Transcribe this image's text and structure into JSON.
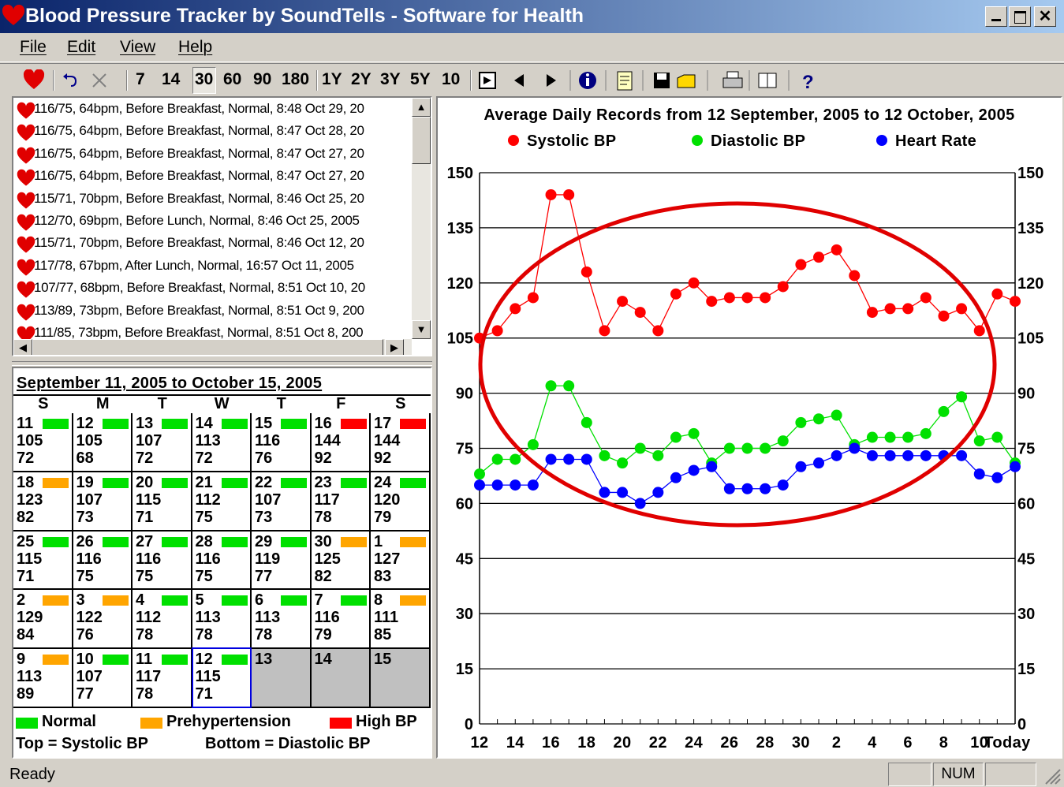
{
  "window": {
    "title": "Blood Pressure Tracker by SoundTells - Software for Health",
    "menu": [
      "File",
      "Edit",
      "View",
      "Help"
    ],
    "toolbar": [
      "7",
      "14",
      "30",
      "60",
      "90",
      "180",
      "1Y",
      "2Y",
      "3Y",
      "5Y",
      "10"
    ]
  },
  "records": [
    "116/75, 64bpm, Before Breakfast, Normal, 8:48 Oct 29, 20",
    "116/75, 64bpm, Before Breakfast, Normal, 8:47 Oct 28, 20",
    "116/75, 64bpm, Before Breakfast, Normal, 8:47 Oct 27, 20",
    "116/75, 64bpm, Before Breakfast, Normal, 8:47 Oct 27, 20",
    "115/71, 70bpm, Before Breakfast, Normal, 8:46 Oct 25, 20",
    "112/70, 69bpm, Before Lunch, Normal, 8:46 Oct 25, 2005",
    "115/71, 70bpm, Before Breakfast, Normal, 8:46 Oct 12, 20",
    "117/78, 67bpm, After Lunch, Normal, 16:57 Oct 11, 2005",
    "107/77, 68bpm, Before Breakfast, Normal, 8:51 Oct 10, 20",
    "113/89, 73bpm, Before Breakfast, Normal, 8:51 Oct 9, 200",
    "111/85, 73bpm, Before Breakfast, Normal, 8:51 Oct 8, 200"
  ],
  "calendar": {
    "title": "September 11, 2005 to October 15, 2005",
    "weekdays": [
      "S",
      "M",
      "T",
      "W",
      "T",
      "F",
      "S"
    ],
    "cells": [
      {
        "day": 11,
        "color": "#00e000",
        "systolic": 105,
        "diastolic": 72
      },
      {
        "day": 12,
        "color": "#00e000",
        "systolic": 105,
        "diastolic": 68
      },
      {
        "day": 13,
        "color": "#00e000",
        "systolic": 107,
        "diastolic": 72
      },
      {
        "day": 14,
        "color": "#00e000",
        "systolic": 113,
        "diastolic": 72
      },
      {
        "day": 15,
        "color": "#00e000",
        "systolic": 116,
        "diastolic": 76
      },
      {
        "day": 16,
        "color": "#ff0000",
        "systolic": 144,
        "diastolic": 92
      },
      {
        "day": 17,
        "color": "#ff0000",
        "systolic": 144,
        "diastolic": 92
      },
      {
        "day": 18,
        "color": "#ffa500",
        "systolic": 123,
        "diastolic": 82
      },
      {
        "day": 19,
        "color": "#00e000",
        "systolic": 107,
        "diastolic": 73
      },
      {
        "day": 20,
        "color": "#00e000",
        "systolic": 115,
        "diastolic": 71
      },
      {
        "day": 21,
        "color": "#00e000",
        "systolic": 112,
        "diastolic": 75
      },
      {
        "day": 22,
        "color": "#00e000",
        "systolic": 107,
        "diastolic": 73
      },
      {
        "day": 23,
        "color": "#00e000",
        "systolic": 117,
        "diastolic": 78
      },
      {
        "day": 24,
        "color": "#00e000",
        "systolic": 120,
        "diastolic": 79
      },
      {
        "day": 25,
        "color": "#00e000",
        "systolic": 115,
        "diastolic": 71
      },
      {
        "day": 26,
        "color": "#00e000",
        "systolic": 116,
        "diastolic": 75
      },
      {
        "day": 27,
        "color": "#00e000",
        "systolic": 116,
        "diastolic": 75
      },
      {
        "day": 28,
        "color": "#00e000",
        "systolic": 116,
        "diastolic": 75
      },
      {
        "day": 29,
        "color": "#00e000",
        "systolic": 119,
        "diastolic": 77
      },
      {
        "day": 30,
        "color": "#ffa500",
        "systolic": 125,
        "diastolic": 82
      },
      {
        "day": 1,
        "color": "#ffa500",
        "systolic": 127,
        "diastolic": 83
      },
      {
        "day": 2,
        "color": "#ffa500",
        "systolic": 129,
        "diastolic": 84
      },
      {
        "day": 3,
        "color": "#ffa500",
        "systolic": 122,
        "diastolic": 76
      },
      {
        "day": 4,
        "color": "#00e000",
        "systolic": 112,
        "diastolic": 78
      },
      {
        "day": 5,
        "color": "#00e000",
        "systolic": 113,
        "diastolic": 78
      },
      {
        "day": 6,
        "color": "#00e000",
        "systolic": 113,
        "diastolic": 78
      },
      {
        "day": 7,
        "color": "#00e000",
        "systolic": 116,
        "diastolic": 79
      },
      {
        "day": 8,
        "color": "#ffa500",
        "systolic": 111,
        "diastolic": 85
      },
      {
        "day": 9,
        "color": "#ffa500",
        "systolic": 113,
        "diastolic": 89
      },
      {
        "day": 10,
        "color": "#00e000",
        "systolic": 107,
        "diastolic": 77
      },
      {
        "day": 11,
        "color": "#00e000",
        "systolic": 117,
        "diastolic": 78
      },
      {
        "day": 12,
        "color": "#00e000",
        "systolic": 115,
        "diastolic": 71,
        "selected": true
      },
      {
        "day": 13
      },
      {
        "day": 14
      },
      {
        "day": 15
      }
    ]
  },
  "legend": {
    "items": [
      {
        "label": "Normal",
        "color": "#00e000"
      },
      {
        "label": "Prehypertension",
        "color": "#ffa500"
      },
      {
        "label": "High BP",
        "color": "#ff0000"
      }
    ],
    "notes": [
      "Top = Systolic BP",
      "Bottom = Diastolic BP"
    ]
  },
  "chart_data": {
    "type": "line",
    "title": "Average Daily Records from 12 September, 2005 to 12 October, 2005",
    "categories": [
      "12",
      null,
      "14",
      null,
      "16",
      null,
      "18",
      null,
      "20",
      null,
      "22",
      null,
      "24",
      null,
      "26",
      null,
      "28",
      null,
      "30",
      null,
      "2",
      null,
      "4",
      null,
      "6",
      null,
      "8",
      null,
      "10",
      null,
      "Today"
    ],
    "series": [
      {
        "name": "Systolic BP",
        "color": "#ff0000",
        "values": [
          105,
          107,
          113,
          116,
          144,
          144,
          123,
          107,
          115,
          112,
          107,
          117,
          120,
          115,
          116,
          116,
          116,
          119,
          125,
          127,
          129,
          122,
          112,
          113,
          113,
          116,
          111,
          113,
          107,
          117,
          115
        ]
      },
      {
        "name": "Diastolic BP",
        "color": "#00e000",
        "values": [
          68,
          72,
          72,
          76,
          92,
          92,
          82,
          73,
          71,
          75,
          73,
          78,
          79,
          71,
          75,
          75,
          75,
          77,
          82,
          83,
          84,
          76,
          78,
          78,
          78,
          79,
          85,
          89,
          77,
          78,
          71
        ]
      },
      {
        "name": "Heart Rate",
        "color": "#0000ff",
        "values": [
          65,
          65,
          65,
          65,
          72,
          72,
          72,
          63,
          63,
          60,
          63,
          67,
          69,
          70,
          64,
          64,
          64,
          65,
          70,
          71,
          73,
          75,
          73,
          73,
          73,
          73,
          73,
          73,
          68,
          67,
          70
        ]
      }
    ],
    "ylim": [
      0,
      150
    ],
    "yticks": [
      0,
      15,
      30,
      45,
      60,
      75,
      90,
      105,
      120,
      135,
      150
    ],
    "y2lim": [
      0,
      150
    ],
    "y2ticks": [
      0,
      15,
      30,
      45,
      60,
      75,
      90,
      105,
      120,
      135,
      150
    ],
    "grid": true
  },
  "status": {
    "text": "Ready",
    "indicator": "NUM"
  }
}
